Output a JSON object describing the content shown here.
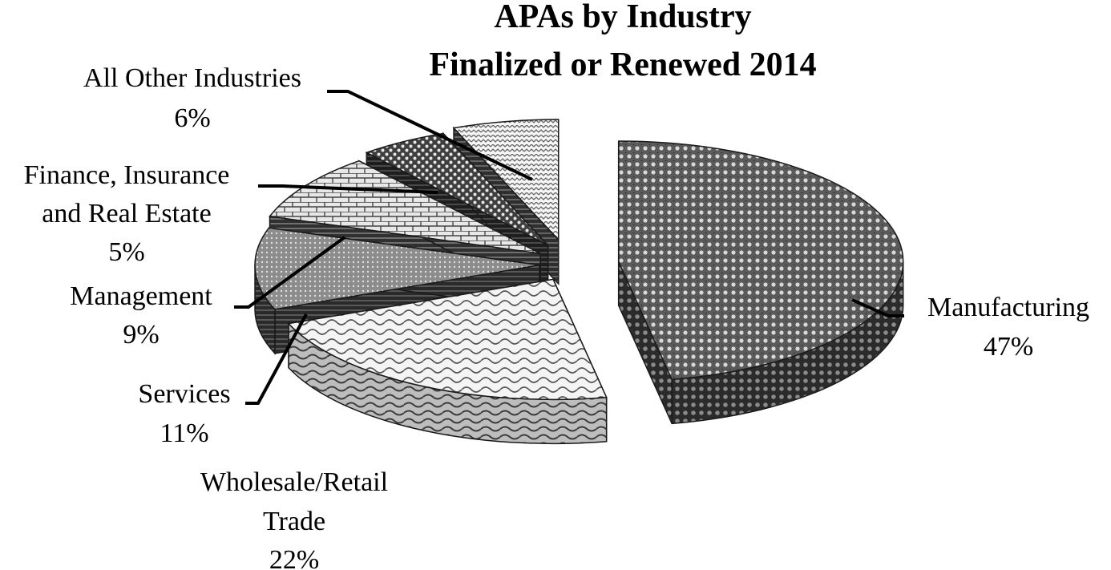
{
  "chart_data": {
    "type": "pie",
    "title": [
      "APAs by Industry",
      "Finalized or Renewed 2014"
    ],
    "slices": [
      {
        "name": "Manufacturing",
        "label": [
          "Manufacturing"
        ],
        "value": 47,
        "value_label": "47%"
      },
      {
        "name": "Wholesale/Retail Trade",
        "label": [
          "Wholesale/Retail",
          "Trade"
        ],
        "value": 22,
        "value_label": "22%"
      },
      {
        "name": "Services",
        "label": [
          "Services"
        ],
        "value": 11,
        "value_label": "11%"
      },
      {
        "name": "Management",
        "label": [
          "Management"
        ],
        "value": 9,
        "value_label": "9%"
      },
      {
        "name": "Finance, Insurance and Real Estate",
        "label": [
          "Finance, Insurance",
          "and Real Estate"
        ],
        "value": 5,
        "value_label": "5%"
      },
      {
        "name": "All Other Industries",
        "label": [
          "All Other Industries"
        ],
        "value": 6,
        "value_label": "6%"
      }
    ],
    "style": "3d-exploded",
    "legend": "none",
    "colors": {
      "background": "#ffffff",
      "text": "#000000",
      "side_dark": "#3a3a3a"
    }
  }
}
